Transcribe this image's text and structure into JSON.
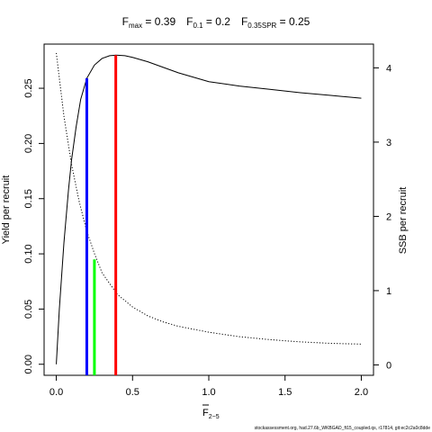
{
  "chart_data": {
    "type": "line",
    "title": {
      "fmax_label": "F",
      "fmax_sub": "max",
      "fmax_value": " = 0.39",
      "f01_label": "F",
      "f01_sub": "0.1",
      "f01_value": " = 0.2",
      "fspr_label": "F",
      "fspr_sub": "0.35SPR",
      "fspr_value": " = 0.25"
    },
    "xlabel": {
      "main": "F",
      "sub": "2−5"
    },
    "ylabel_left": "Yield per recruit",
    "ylabel_right": "SSB per recruit",
    "xlim": [
      -0.08,
      2.08
    ],
    "ylim_left": [
      -0.01,
      0.29
    ],
    "ylim_right": [
      -0.14,
      4.32
    ],
    "x_ticks": [
      {
        "value": 0.0,
        "label": "0.0"
      },
      {
        "value": 0.5,
        "label": "0.5"
      },
      {
        "value": 1.0,
        "label": "1.0"
      },
      {
        "value": 1.5,
        "label": "1.5"
      },
      {
        "value": 2.0,
        "label": "2.0"
      }
    ],
    "y_ticks_left": [
      {
        "value": 0.0,
        "label": "0.00"
      },
      {
        "value": 0.05,
        "label": "0.05"
      },
      {
        "value": 0.1,
        "label": "0.10"
      },
      {
        "value": 0.15,
        "label": "0.15"
      },
      {
        "value": 0.2,
        "label": "0.20"
      },
      {
        "value": 0.25,
        "label": "0.25"
      }
    ],
    "y_ticks_right": [
      {
        "value": 0,
        "label": "0"
      },
      {
        "value": 1,
        "label": "1"
      },
      {
        "value": 2,
        "label": "2"
      },
      {
        "value": 3,
        "label": "3"
      },
      {
        "value": 4,
        "label": "4"
      }
    ],
    "series": [
      {
        "axis": "left",
        "style": "solid",
        "color": "#000000",
        "x": [
          0.0,
          0.02,
          0.05,
          0.08,
          0.1,
          0.13,
          0.16,
          0.2,
          0.25,
          0.3,
          0.35,
          0.39,
          0.45,
          0.5,
          0.6,
          0.7,
          0.8,
          1.0,
          1.2,
          1.4,
          1.6,
          1.8,
          2.0
        ],
        "y": [
          0.0,
          0.05,
          0.11,
          0.158,
          0.185,
          0.215,
          0.24,
          0.259,
          0.271,
          0.277,
          0.2795,
          0.28,
          0.2795,
          0.278,
          0.274,
          0.269,
          0.264,
          0.256,
          0.252,
          0.249,
          0.246,
          0.2435,
          0.241
        ]
      },
      {
        "axis": "right",
        "style": "dotted",
        "color": "#000000",
        "x": [
          0.0,
          0.05,
          0.1,
          0.15,
          0.2,
          0.25,
          0.3,
          0.4,
          0.5,
          0.6,
          0.7,
          0.8,
          1.0,
          1.2,
          1.4,
          1.6,
          1.8,
          2.0
        ],
        "y": [
          4.2,
          3.35,
          2.7,
          2.2,
          1.8,
          1.5,
          1.24,
          0.95,
          0.78,
          0.66,
          0.58,
          0.52,
          0.44,
          0.38,
          0.34,
          0.31,
          0.29,
          0.28
        ]
      }
    ],
    "reference_lines": [
      {
        "name": "F0.1",
        "x": 0.2,
        "y_top": 0.259,
        "color": "#0000ff"
      },
      {
        "name": "F0.35SPR",
        "x": 0.25,
        "y_top": 0.095,
        "color": "#00ff00"
      },
      {
        "name": "Fmax",
        "x": 0.39,
        "y_top": 0.28,
        "color": "#ff0000"
      }
    ],
    "grid": false,
    "footer": "stockassessment.org, had.27.6b_WKBGAD_ft15_coupled.qs, r17814, git:ec2c2a0c8dde"
  }
}
